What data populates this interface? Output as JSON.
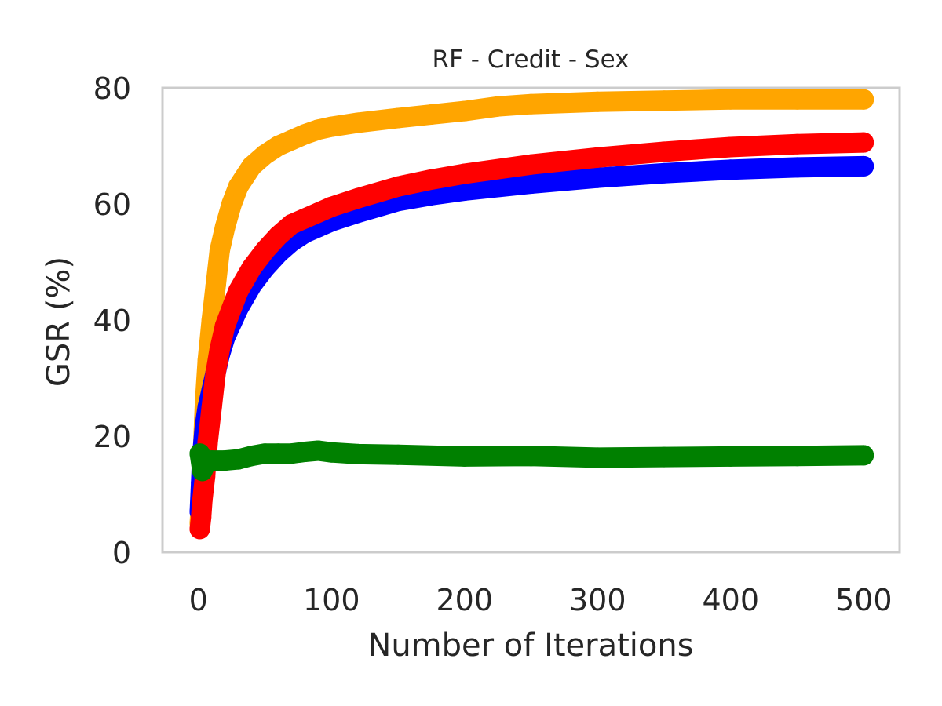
{
  "chart_data": {
    "type": "line",
    "title": "RF - Credit - Sex",
    "xlabel": "Number of Iterations",
    "ylabel": "GSR (%)",
    "xlim": [
      -27,
      527
    ],
    "ylim": [
      0,
      80
    ],
    "xticks": [
      0,
      100,
      200,
      300,
      400,
      500
    ],
    "yticks": [
      0,
      20,
      40,
      60,
      80
    ],
    "grid": false,
    "legend": "none",
    "series": [
      {
        "color": "#ffa500",
        "x": [
          1,
          2,
          3,
          5,
          7,
          10,
          13,
          16,
          20,
          25,
          30,
          40,
          50,
          60,
          70,
          80,
          90,
          100,
          120,
          150,
          175,
          200,
          225,
          250,
          300,
          350,
          400,
          450,
          500
        ],
        "y": [
          5,
          9,
          15,
          26,
          33,
          40,
          46,
          52,
          56,
          60,
          63,
          66.5,
          68.5,
          70,
          71,
          72,
          72.8,
          73.3,
          74,
          74.8,
          75.4,
          76,
          76.8,
          77.2,
          77.6,
          77.8,
          78,
          78,
          78
        ]
      },
      {
        "color": "#0000ff",
        "x": [
          1,
          2,
          3,
          5,
          7,
          10,
          13,
          16,
          20,
          25,
          30,
          40,
          50,
          60,
          70,
          80,
          90,
          100,
          120,
          150,
          175,
          200,
          250,
          300,
          350,
          400,
          450,
          500
        ],
        "y": [
          7,
          12,
          17,
          22,
          25,
          28,
          31,
          34,
          37,
          39.5,
          42,
          46,
          49,
          51.5,
          53.5,
          55,
          56,
          57,
          58.5,
          60.5,
          61.5,
          62.3,
          63.5,
          64.5,
          65.3,
          65.9,
          66.3,
          66.5
        ]
      },
      {
        "color": "#ff0000",
        "x": [
          1,
          2,
          3,
          5,
          7,
          10,
          13,
          16,
          20,
          25,
          30,
          40,
          50,
          60,
          70,
          80,
          90,
          100,
          120,
          150,
          175,
          200,
          250,
          300,
          350,
          400,
          450,
          500
        ],
        "y": [
          4,
          6,
          9,
          13,
          19,
          25,
          31,
          35,
          39,
          42,
          45,
          49,
          52,
          54.5,
          56.5,
          57.5,
          58.5,
          59.5,
          61,
          63,
          64.2,
          65.2,
          66.8,
          68,
          69,
          69.8,
          70.3,
          70.6
        ]
      },
      {
        "color": "#008000",
        "x": [
          1,
          3,
          6,
          10,
          20,
          30,
          40,
          50,
          60,
          70,
          80,
          90,
          100,
          120,
          150,
          200,
          250,
          300,
          350,
          400,
          450,
          500
        ],
        "y": [
          17,
          14,
          15.5,
          15.8,
          15.8,
          16,
          16.6,
          17,
          17,
          17,
          17.3,
          17.5,
          17.2,
          16.9,
          16.8,
          16.5,
          16.6,
          16.3,
          16.4,
          16.5,
          16.6,
          16.7
        ]
      }
    ]
  }
}
